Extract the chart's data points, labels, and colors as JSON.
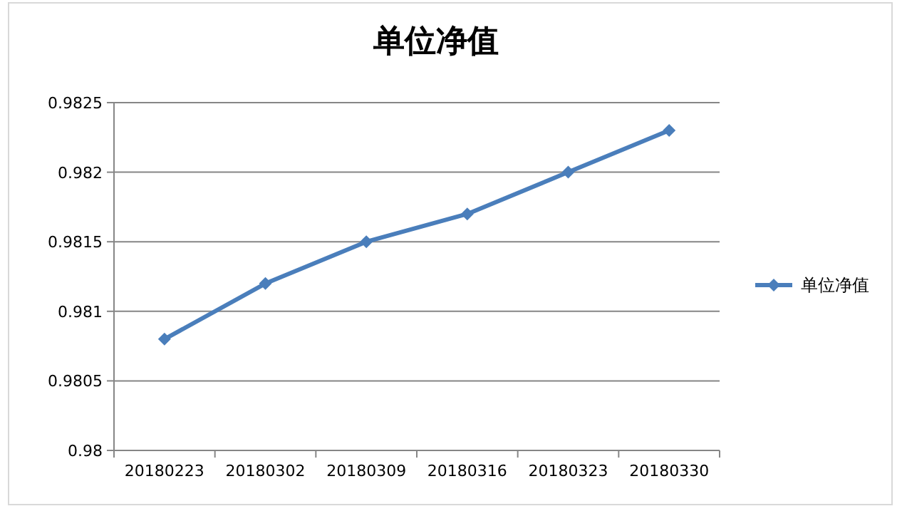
{
  "chart_data": {
    "type": "line",
    "title": "单位净值",
    "categories": [
      "20180223",
      "20180302",
      "20180309",
      "20180316",
      "20180323",
      "20180330"
    ],
    "series": [
      {
        "name": "单位净值",
        "color": "#4a7ebb",
        "values": [
          0.9808,
          0.9812,
          0.9815,
          0.9817,
          0.982,
          0.9823
        ]
      }
    ],
    "ylim": [
      0.98,
      0.9825
    ],
    "yticks": [
      {
        "value": 0.98,
        "label": "0.98"
      },
      {
        "value": 0.9805,
        "label": "0.9805"
      },
      {
        "value": 0.981,
        "label": "0.981"
      },
      {
        "value": 0.9815,
        "label": "0.9815"
      },
      {
        "value": 0.982,
        "label": "0.982"
      },
      {
        "value": 0.9825,
        "label": "0.9825"
      }
    ],
    "grid": "y",
    "legend": "right",
    "marker": "diamond",
    "line_style": "solid"
  }
}
